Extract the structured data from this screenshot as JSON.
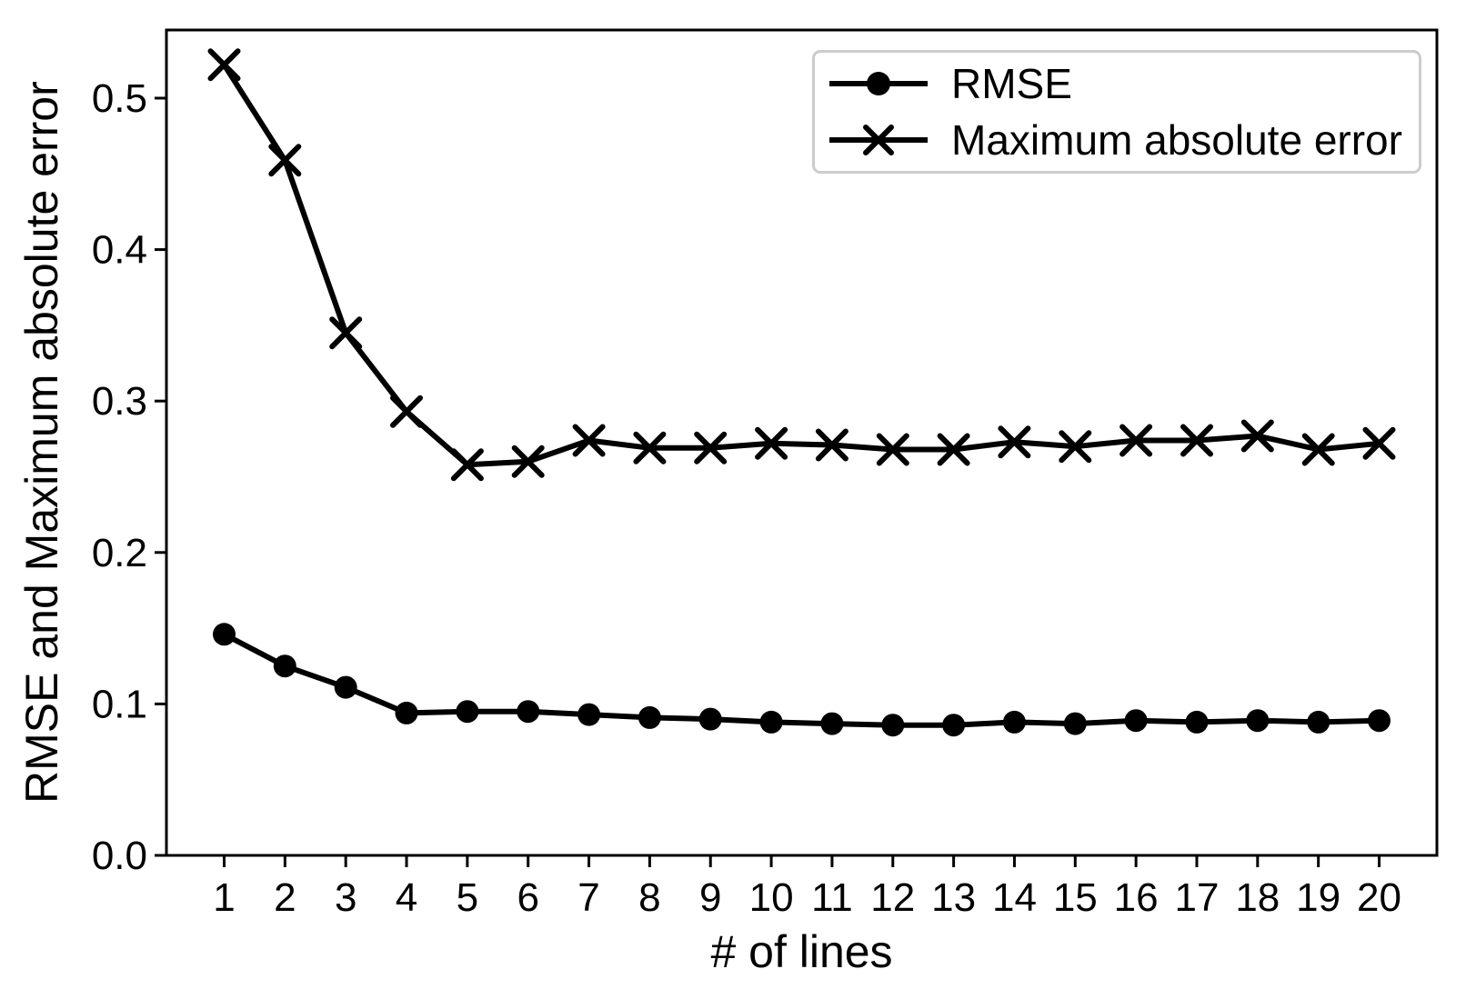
{
  "colors": {
    "line": "#000000",
    "text": "#000000",
    "legend_border": "#cccccc",
    "background": "#ffffff"
  },
  "chart_data": {
    "type": "line",
    "title": "",
    "xlabel": "# of lines",
    "ylabel": "RMSE and Maximum absolute error",
    "x": [
      1,
      2,
      3,
      4,
      5,
      6,
      7,
      8,
      9,
      10,
      11,
      12,
      13,
      14,
      15,
      16,
      17,
      18,
      19,
      20
    ],
    "series": [
      {
        "name": "RMSE",
        "marker": "circle",
        "color": "#000000",
        "values": [
          0.146,
          0.125,
          0.111,
          0.094,
          0.095,
          0.095,
          0.093,
          0.091,
          0.09,
          0.088,
          0.087,
          0.086,
          0.086,
          0.088,
          0.087,
          0.089,
          0.088,
          0.089,
          0.088,
          0.089
        ]
      },
      {
        "name": "Maximum absolute error",
        "marker": "x",
        "color": "#000000",
        "values": [
          0.522,
          0.459,
          0.345,
          0.293,
          0.258,
          0.26,
          0.274,
          0.269,
          0.269,
          0.272,
          0.271,
          0.268,
          0.268,
          0.273,
          0.27,
          0.274,
          0.274,
          0.277,
          0.268,
          0.272
        ]
      }
    ],
    "xlim": [
      0.05,
      20.95
    ],
    "ylim": [
      0.0,
      0.545
    ],
    "xticks": [
      1,
      2,
      3,
      4,
      5,
      6,
      7,
      8,
      9,
      10,
      11,
      12,
      13,
      14,
      15,
      16,
      17,
      18,
      19,
      20
    ],
    "yticks": [
      0.0,
      0.1,
      0.2,
      0.3,
      0.4,
      0.5
    ],
    "grid": false,
    "legend": {
      "position": "upper right",
      "entries": [
        "RMSE",
        "Maximum absolute error"
      ]
    }
  }
}
